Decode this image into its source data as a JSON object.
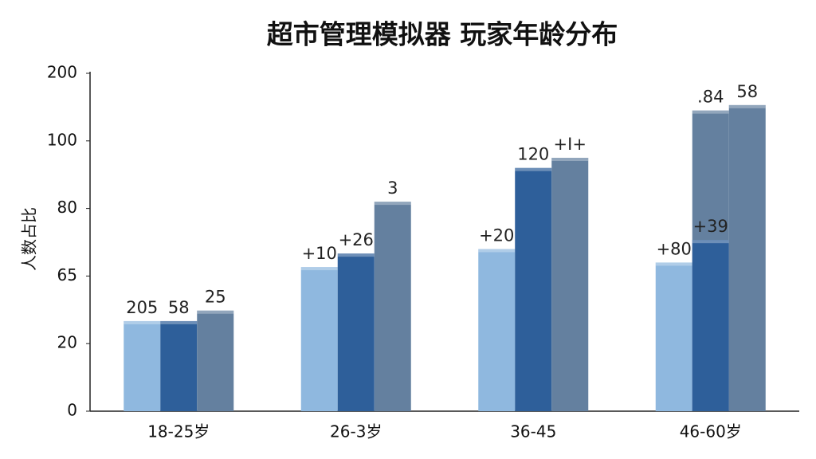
{
  "chart_data": {
    "type": "bar",
    "title": "超市管理模拟器 玩家年龄分布",
    "y_label": "人数占比",
    "categories": [
      "18-25岁",
      "26-3岁",
      "36-45",
      "46-60岁"
    ],
    "yticks": [
      0,
      20,
      65,
      80,
      100,
      200
    ],
    "series": [
      {
        "color": "#8fb8df",
        "values": [
          35,
          67,
          71,
          68
        ],
        "labels": [
          "205",
          "+10",
          "+20",
          "+80"
        ]
      },
      {
        "color": "#2e5f9a",
        "values": [
          35,
          70,
          92,
          73
        ],
        "labels": [
          "58",
          "+26",
          "120",
          "+39"
        ]
      },
      {
        "color": "#64809f",
        "values": [
          42,
          82,
          95,
          153
        ],
        "labels": [
          "25",
          "3",
          "+I+",
          "58"
        ]
      },
      {
        "color": "#64809f",
        "values": [
          null,
          null,
          null,
          145
        ],
        "labels": [
          null,
          null,
          null,
          ".84"
        ]
      }
    ]
  }
}
